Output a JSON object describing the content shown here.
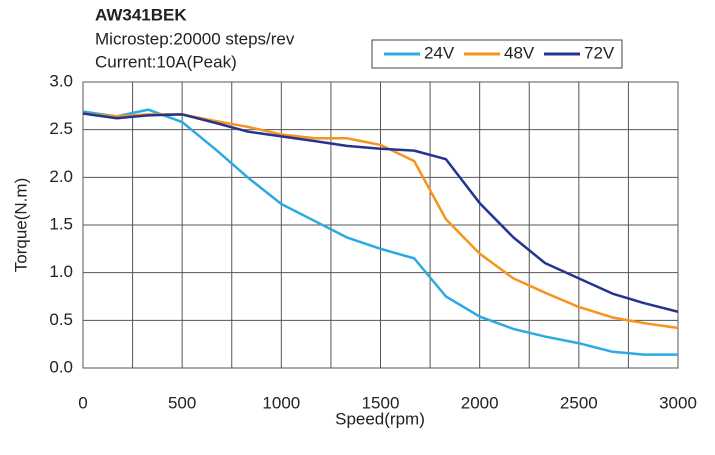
{
  "chart_data": {
    "type": "line",
    "title": "AW341BEK",
    "subtitle": [
      "Microstep:20000 steps/rev",
      "Current:10A(Peak)"
    ],
    "x_label": "Speed(rpm)",
    "y_label": "Torque(N.m)",
    "x": [
      0,
      170,
      330,
      500,
      670,
      830,
      1000,
      1170,
      1330,
      1500,
      1670,
      1830,
      2000,
      2170,
      2330,
      2500,
      2670,
      2830,
      3000
    ],
    "series": [
      {
        "name": "24V",
        "color": "#29abe2",
        "values": [
          2.69,
          2.64,
          2.71,
          2.58,
          2.29,
          2.0,
          1.72,
          1.54,
          1.37,
          1.25,
          1.15,
          0.75,
          0.54,
          0.41,
          0.33,
          0.26,
          0.17,
          0.14,
          0.14
        ]
      },
      {
        "name": "48V",
        "color": "#f7931e",
        "values": [
          2.67,
          2.64,
          2.66,
          2.66,
          2.59,
          2.53,
          2.45,
          2.41,
          2.41,
          2.34,
          2.17,
          1.56,
          1.2,
          0.94,
          0.79,
          0.64,
          0.53,
          0.47,
          0.42
        ]
      },
      {
        "name": "72V",
        "color": "#25358f",
        "values": [
          2.67,
          2.62,
          2.65,
          2.66,
          2.57,
          2.48,
          2.43,
          2.38,
          2.33,
          2.3,
          2.28,
          2.19,
          1.73,
          1.37,
          1.1,
          0.94,
          0.78,
          0.68,
          0.59
        ]
      }
    ],
    "xlim": [
      0,
      3000
    ],
    "ylim": [
      0,
      3
    ],
    "xticks": [
      0,
      500,
      1000,
      1500,
      2000,
      2500,
      3000
    ],
    "xgrid": [
      250,
      750,
      1250,
      1750,
      2250,
      2750
    ],
    "yticks": [
      {
        "value": 0,
        "label": "0.0"
      },
      {
        "value": 0.5,
        "label": "0.5"
      },
      {
        "value": 1,
        "label": "1.0"
      },
      {
        "value": 1.5,
        "label": "1.5"
      },
      {
        "value": 2,
        "label": "2.0"
      },
      {
        "value": 2.5,
        "label": "2.5"
      },
      {
        "value": 3,
        "label": "3.0"
      }
    ],
    "grid": true,
    "legend": "top-right"
  }
}
